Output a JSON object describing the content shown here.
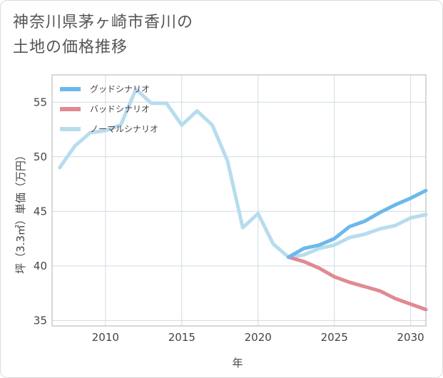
{
  "title_lines": [
    "神奈川県茅ヶ崎市香川の",
    "土地の価格推移"
  ],
  "chart_data": {
    "type": "line",
    "xlabel": "年",
    "ylabel": "坪（3.3㎡）単価（万円）",
    "xlim": [
      2006.5,
      2031
    ],
    "ylim": [
      34.5,
      57.5
    ],
    "x_ticks": [
      2010,
      2015,
      2020,
      2025,
      2030
    ],
    "y_ticks": [
      35,
      40,
      45,
      50,
      55
    ],
    "grid": true,
    "legend_position": "top-left",
    "series": [
      {
        "name": "グッドシナリオ",
        "color": "#6cb8ec",
        "points": [
          [
            2022,
            40.8
          ],
          [
            2023,
            41.6
          ],
          [
            2024,
            41.9
          ],
          [
            2025,
            42.5
          ],
          [
            2026,
            43.6
          ],
          [
            2027,
            44.1
          ],
          [
            2028,
            44.9
          ],
          [
            2029,
            45.6
          ],
          [
            2030,
            46.2
          ],
          [
            2031,
            46.9
          ]
        ]
      },
      {
        "name": "バッドシナリオ",
        "color": "#e08a92",
        "points": [
          [
            2022,
            40.8
          ],
          [
            2023,
            40.4
          ],
          [
            2024,
            39.8
          ],
          [
            2025,
            39.0
          ],
          [
            2026,
            38.5
          ],
          [
            2027,
            38.1
          ],
          [
            2028,
            37.7
          ],
          [
            2029,
            37.0
          ],
          [
            2030,
            36.5
          ],
          [
            2031,
            36.0
          ]
        ]
      },
      {
        "name": "ノーマルシナリオ",
        "color": "#b7dcee",
        "points": [
          [
            2007,
            49.0
          ],
          [
            2008,
            51.0
          ],
          [
            2009,
            52.2
          ],
          [
            2010,
            52.4
          ],
          [
            2011,
            52.9
          ],
          [
            2012,
            56.2
          ],
          [
            2013,
            54.9
          ],
          [
            2014,
            54.9
          ],
          [
            2015,
            52.9
          ],
          [
            2016,
            54.2
          ],
          [
            2017,
            52.9
          ],
          [
            2018,
            49.6
          ],
          [
            2019,
            43.5
          ],
          [
            2020,
            44.8
          ],
          [
            2021,
            42.0
          ],
          [
            2022,
            40.8
          ],
          [
            2023,
            41.0
          ],
          [
            2024,
            41.6
          ],
          [
            2025,
            41.9
          ],
          [
            2026,
            42.6
          ],
          [
            2027,
            42.9
          ],
          [
            2028,
            43.4
          ],
          [
            2029,
            43.7
          ],
          [
            2030,
            44.4
          ],
          [
            2031,
            44.7
          ]
        ]
      }
    ]
  }
}
